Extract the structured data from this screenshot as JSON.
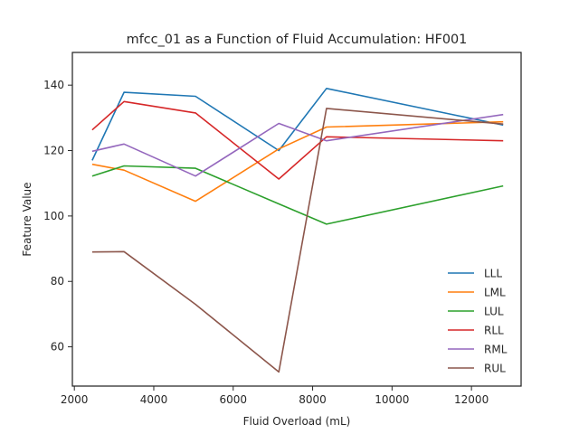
{
  "chart_data": {
    "type": "line",
    "title": "mfcc_01 as a Function of Fluid Accumulation: HF001",
    "xlabel": "Fluid Overload (mL)",
    "ylabel": "Feature Value",
    "xlim": [
      1950,
      13250
    ],
    "ylim": [
      48,
      150
    ],
    "xticks": [
      2000,
      4000,
      6000,
      8000,
      10000,
      12000
    ],
    "yticks": [
      60,
      80,
      100,
      120,
      140
    ],
    "grid": false,
    "legend_position": "lower-right",
    "x": [
      2450,
      3250,
      5050,
      7150,
      8350,
      12800
    ],
    "series": [
      {
        "name": "LLL",
        "color": "#1f77b4",
        "values": [
          117,
          137.8,
          136.6,
          120,
          139,
          127.8
        ]
      },
      {
        "name": "LML",
        "color": "#ff7f0e",
        "values": [
          115.8,
          114,
          104.5,
          120.5,
          127.2,
          128.8
        ]
      },
      {
        "name": "LUL",
        "color": "#2ca02c",
        "values": [
          112.2,
          115.3,
          114.6,
          103.7,
          97.5,
          109.2
        ]
      },
      {
        "name": "RLL",
        "color": "#d62728",
        "values": [
          126.3,
          135,
          131.5,
          111.3,
          124.2,
          123
        ]
      },
      {
        "name": "RML",
        "color": "#9467bd",
        "values": [
          119.8,
          122,
          112.2,
          128.3,
          123,
          131
        ]
      },
      {
        "name": "RUL",
        "color": "#8c564b",
        "values": [
          89,
          89.1,
          73,
          52.3,
          132.9,
          128.1
        ]
      }
    ]
  }
}
